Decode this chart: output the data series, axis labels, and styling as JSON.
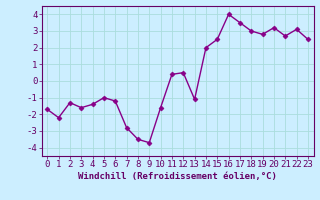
{
  "x": [
    0,
    1,
    2,
    3,
    4,
    5,
    6,
    7,
    8,
    9,
    10,
    11,
    12,
    13,
    14,
    15,
    16,
    17,
    18,
    19,
    20,
    21,
    22,
    23
  ],
  "y": [
    -1.7,
    -2.2,
    -1.3,
    -1.6,
    -1.4,
    -1.0,
    -1.2,
    -2.8,
    -3.5,
    -3.7,
    -1.6,
    0.4,
    0.5,
    -1.1,
    2.0,
    2.5,
    4.0,
    3.5,
    3.0,
    2.8,
    3.2,
    2.7,
    3.1,
    2.5
  ],
  "line_color": "#880088",
  "marker": "D",
  "marker_size": 2.5,
  "bg_color": "#cceeff",
  "grid_color": "#aadddd",
  "xlabel": "Windchill (Refroidissement éolien,°C)",
  "ylim": [
    -4.5,
    4.5
  ],
  "xlim": [
    -0.5,
    23.5
  ],
  "yticks": [
    -4,
    -3,
    -2,
    -1,
    0,
    1,
    2,
    3,
    4
  ],
  "xtick_labels": [
    "0",
    "1",
    "2",
    "3",
    "4",
    "5",
    "6",
    "7",
    "8",
    "9",
    "10",
    "11",
    "12",
    "13",
    "14",
    "15",
    "16",
    "17",
    "18",
    "19",
    "20",
    "21",
    "22",
    "23"
  ],
  "xlabel_fontsize": 6.5,
  "tick_fontsize": 6.5,
  "line_width": 1.0,
  "spine_color": "#660066",
  "text_color": "#660066"
}
